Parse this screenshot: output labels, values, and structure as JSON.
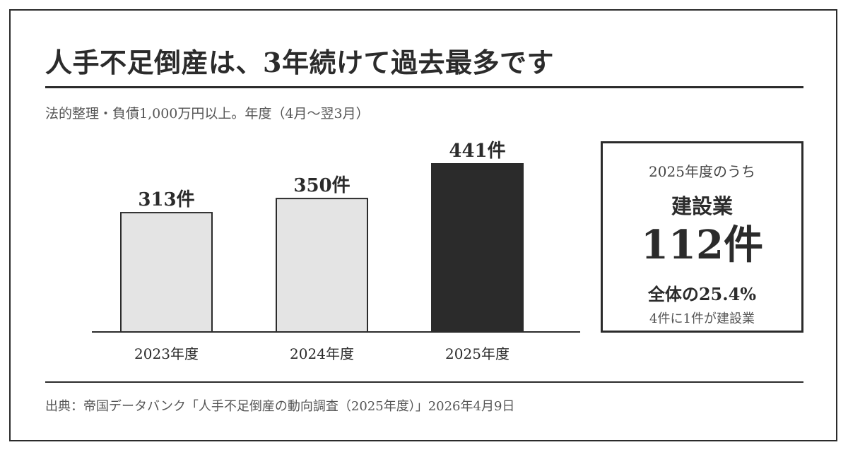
{
  "title": "人手不足倒産は、3年続けて過去最多です",
  "subtitle": "法的整理・負債1,000万円以上。年度（4月～翌3月）",
  "chart_data": {
    "type": "bar",
    "categories": [
      "2023年度",
      "2024年度",
      "2025年度"
    ],
    "values": [
      313,
      350,
      441
    ],
    "value_labels": [
      "313件",
      "350件",
      "441件"
    ],
    "highlight_index": 2,
    "colors": {
      "default_fill": "#e4e4e4",
      "highlight_fill": "#2b2b2b",
      "stroke": "#2b2b2b"
    },
    "ylim": [
      0,
      441
    ]
  },
  "callout": {
    "heading": "2025年度のうち",
    "sector": "建設業",
    "value": "112件",
    "share": "全体の25.4%",
    "note": "4件に1件が建設業"
  },
  "source": "出典：帝国データバンク「人手不足倒産の動向調査（2025年度）」2026年4月9日"
}
